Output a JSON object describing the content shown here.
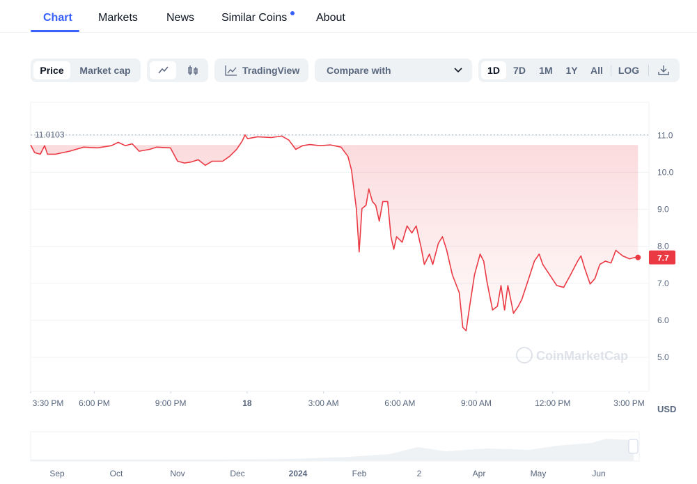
{
  "tabs": [
    "Chart",
    "Markets",
    "News",
    "Similar Coins",
    "About"
  ],
  "toolbar": {
    "metric": [
      "Price",
      "Market cap"
    ],
    "tradingview": "TradingView",
    "compare": "Compare with",
    "ranges": [
      "1D",
      "7D",
      "1M",
      "1Y",
      "All",
      "LOG"
    ]
  },
  "chart_data": {
    "type": "line",
    "color": "#ea3943",
    "x": [
      15.5,
      15.66,
      15.88,
      16.05,
      16.16,
      16.48,
      17.03,
      17.58,
      18.12,
      18.67,
      18.94,
      19.22,
      19.49,
      19.76,
      20.17,
      20.45,
      20.99,
      21.27,
      21.54,
      21.81,
      22.08,
      22.36,
      22.63,
      23.04,
      23.31,
      23.59,
      23.81,
      23.92,
      24.02,
      24.41,
      24.95,
      25.36,
      25.64,
      25.91,
      26.18,
      26.46,
      26.87,
      27.28,
      27.69,
      27.96,
      28.1,
      28.29,
      28.4,
      28.51,
      28.67,
      28.78,
      28.92,
      29.05,
      29.19,
      29.33,
      29.52,
      29.65,
      29.76,
      29.87,
      30.09,
      30.28,
      30.47,
      30.64,
      30.83,
      30.96,
      31.16,
      31.29,
      31.51,
      31.67,
      31.84,
      32.06,
      32.33,
      32.47,
      32.6,
      32.74,
      32.93,
      33.15,
      33.29,
      33.42,
      33.64,
      33.83,
      33.97,
      34.11,
      34.24,
      34.46,
      34.65,
      34.79,
      35.06,
      35.28,
      35.47,
      35.61,
      35.88,
      36.16,
      36.43,
      36.7,
      36.98,
      37.11,
      37.25,
      37.47,
      37.66,
      37.85,
      38.07,
      38.29,
      38.48,
      38.75,
      39.02,
      39.22,
      39.35
    ],
    "values": [
      10.74,
      10.53,
      10.49,
      10.72,
      10.49,
      10.49,
      10.57,
      10.68,
      10.66,
      10.72,
      10.81,
      10.72,
      10.77,
      10.57,
      10.62,
      10.68,
      10.66,
      10.3,
      10.25,
      10.28,
      10.34,
      10.19,
      10.3,
      10.3,
      10.43,
      10.62,
      10.85,
      11.0103,
      10.91,
      10.96,
      10.94,
      10.98,
      10.87,
      10.62,
      10.72,
      10.75,
      10.72,
      10.74,
      10.68,
      10.43,
      10.06,
      9.02,
      7.85,
      9.02,
      9.11,
      9.55,
      9.21,
      9.11,
      8.68,
      9.21,
      9.21,
      8.26,
      7.92,
      8.26,
      8.11,
      8.55,
      8.36,
      8.55,
      7.98,
      7.51,
      7.79,
      7.51,
      8.08,
      8.26,
      7.89,
      7.23,
      6.75,
      5.81,
      5.72,
      6.38,
      7.23,
      7.79,
      7.6,
      7.04,
      6.28,
      6.38,
      6.94,
      6.28,
      6.94,
      6.19,
      6.38,
      6.57,
      7.13,
      7.6,
      7.79,
      7.51,
      7.23,
      6.94,
      6.89,
      7.23,
      7.6,
      7.74,
      7.42,
      6.98,
      7.13,
      7.51,
      7.6,
      7.55,
      7.89,
      7.74,
      7.66,
      7.7,
      7.7
    ],
    "high": 11.0103,
    "xlim": [
      15.5,
      39.78
    ],
    "ylim": [
      4.08,
      11.89
    ],
    "xticks": [
      {
        "value": 15.5,
        "label": "3:30 PM"
      },
      {
        "value": 18,
        "label": "6:00 PM"
      },
      {
        "value": 21,
        "label": "9:00 PM"
      },
      {
        "value": 24,
        "label": "18"
      },
      {
        "value": 27,
        "label": "3:00 AM"
      },
      {
        "value": 30,
        "label": "6:00 AM"
      },
      {
        "value": 33,
        "label": "9:00 AM"
      },
      {
        "value": 36,
        "label": "12:00 PM"
      },
      {
        "value": 39,
        "label": "3:00 PM"
      }
    ],
    "yticks": [
      {
        "value": 5,
        "label": "5.0"
      },
      {
        "value": 6,
        "label": "6.0"
      },
      {
        "value": 7,
        "label": "7.0"
      },
      {
        "value": 8,
        "label": "8.0"
      },
      {
        "value": 9,
        "label": "9.0"
      },
      {
        "value": 10,
        "label": "10.0"
      },
      {
        "value": 11,
        "label": "11.0"
      }
    ],
    "y_unit": "USD",
    "grid": true,
    "watermark": "CoinMarketCap"
  },
  "navigator": {
    "labels": [
      "Sep",
      "Oct",
      "Nov",
      "Dec",
      "2024",
      "Feb",
      "2",
      "Apr",
      "May",
      "Jun"
    ]
  }
}
